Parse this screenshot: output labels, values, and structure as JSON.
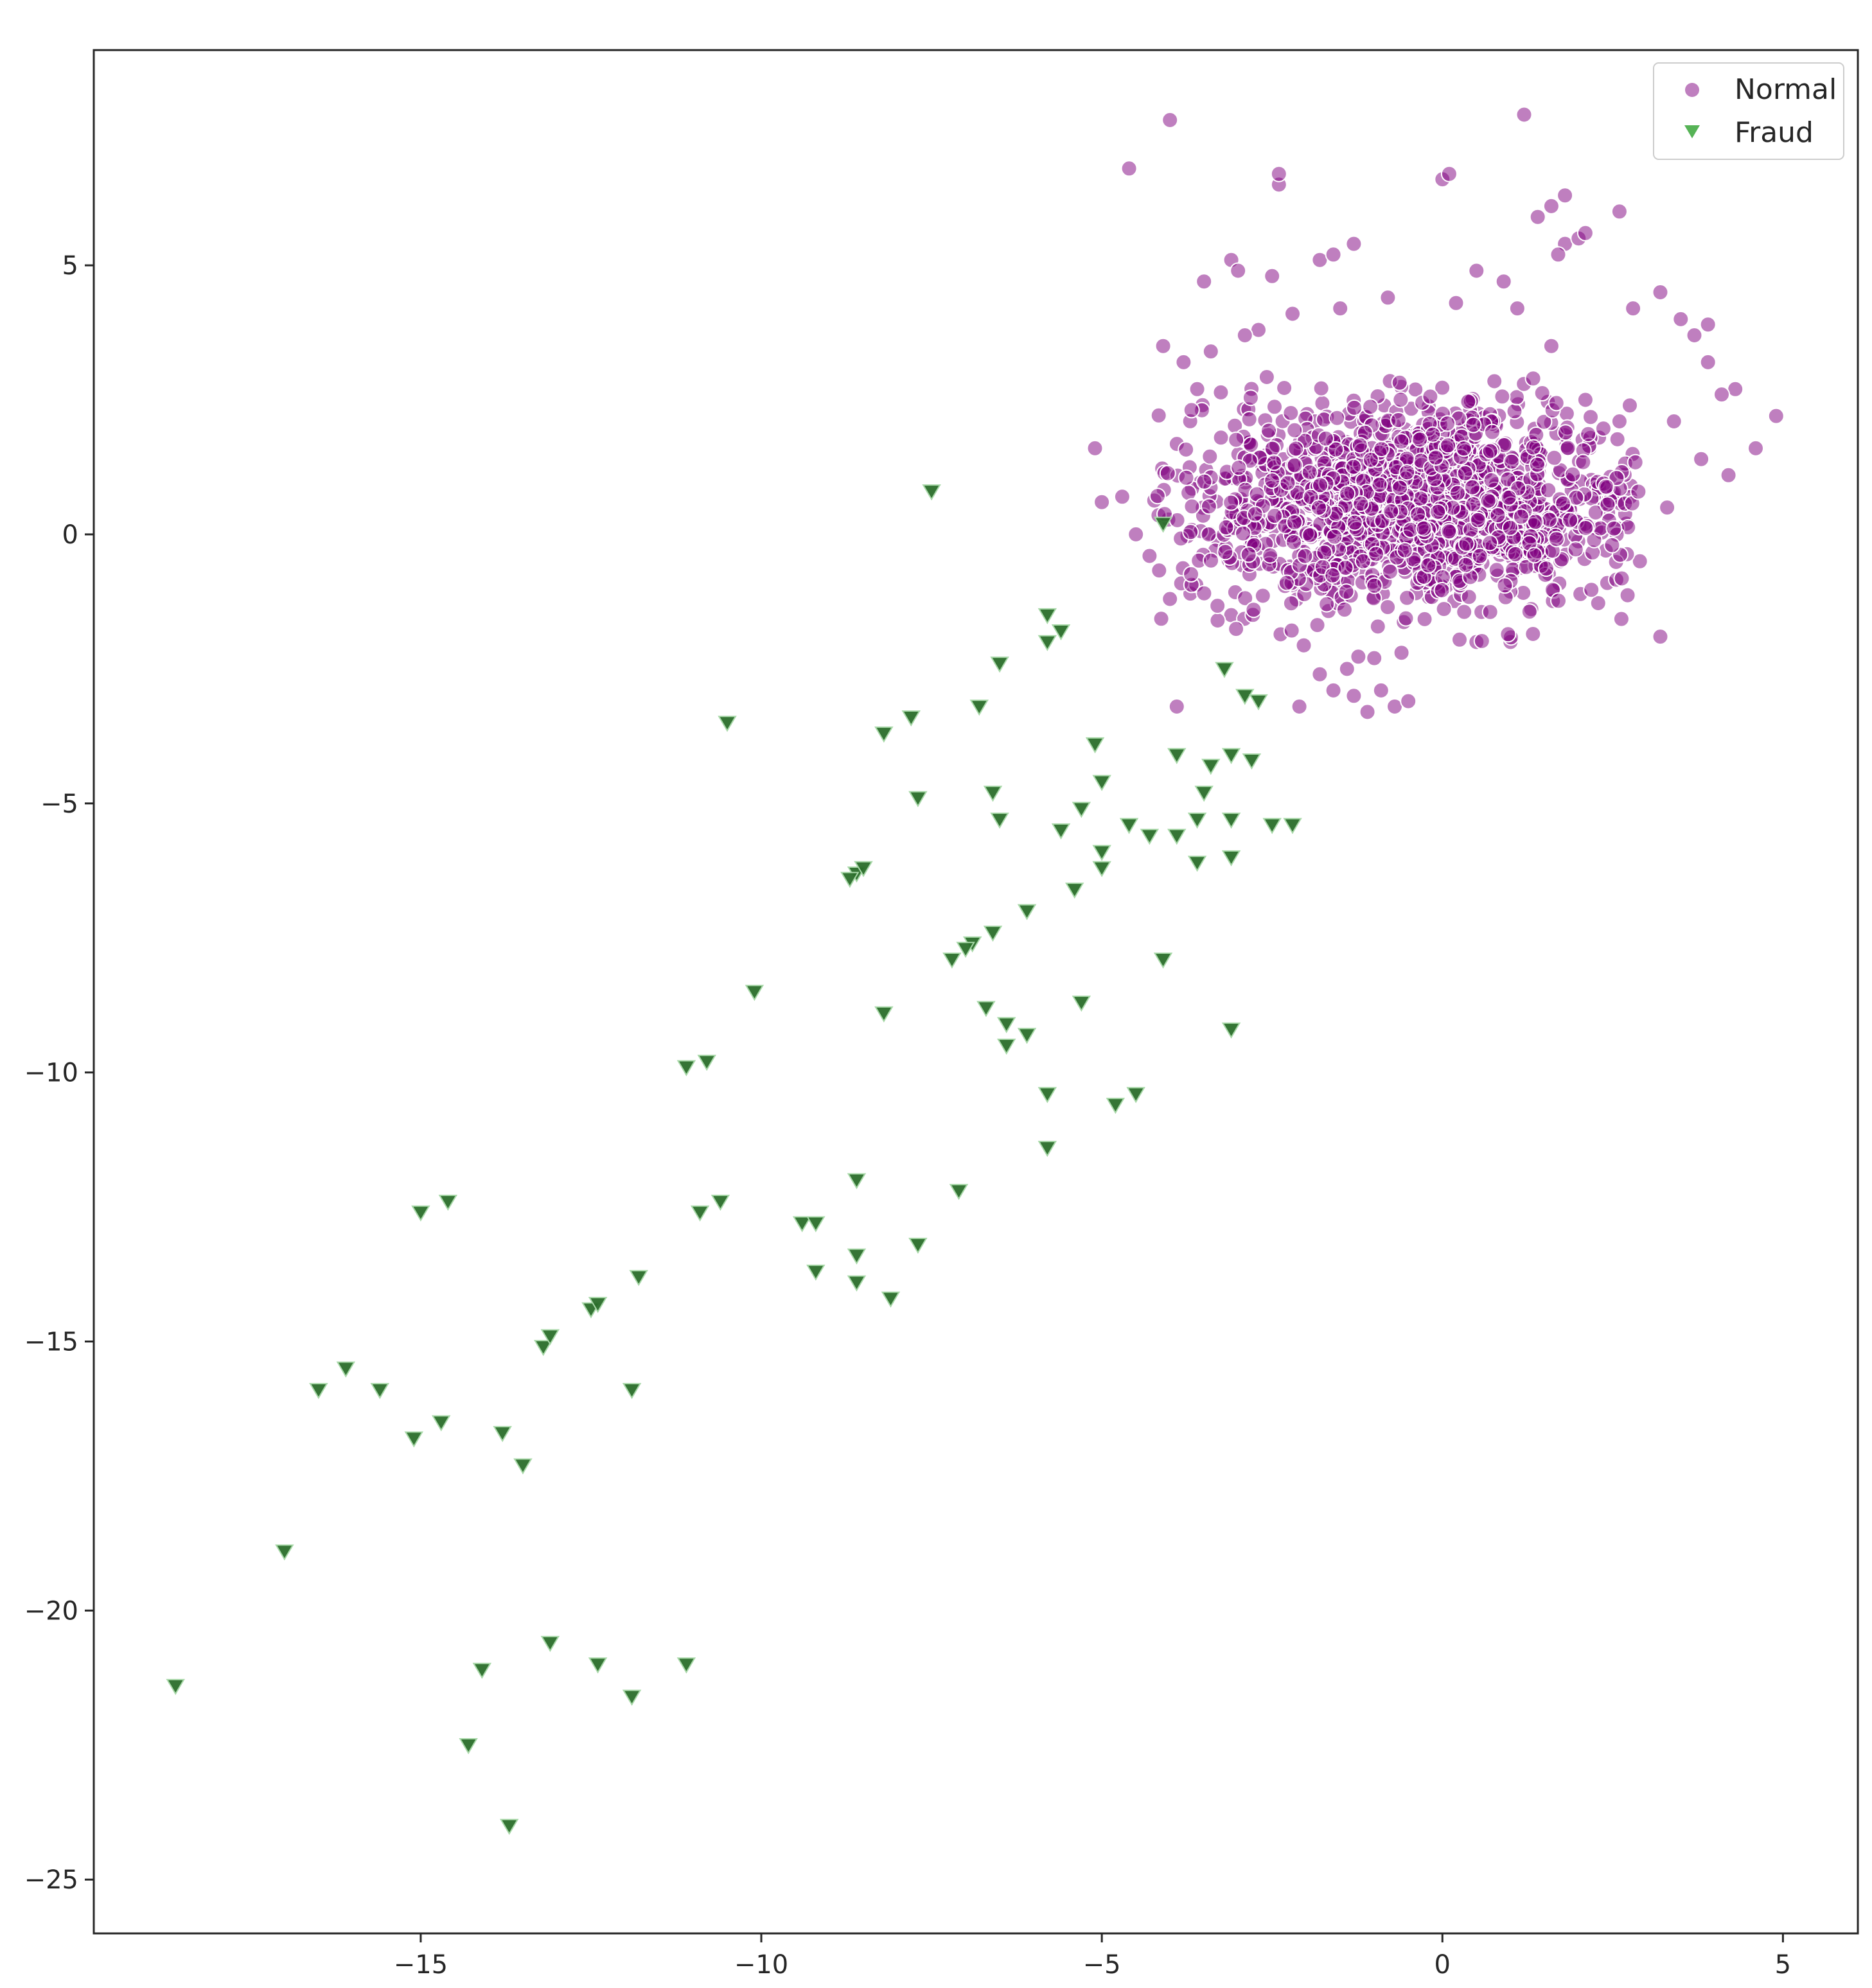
{
  "chart_data": {
    "type": "scatter",
    "title": "",
    "xlabel": "",
    "ylabel": "",
    "xlim": [
      -19.8,
      6.1
    ],
    "ylim": [
      -26.0,
      9.0
    ],
    "x_ticks": [
      -15,
      -10,
      -5,
      0,
      5
    ],
    "y_ticks": [
      5,
      0,
      -5,
      -10,
      -15,
      -20,
      -25
    ],
    "grid": false,
    "legend": {
      "position": "top-right"
    },
    "series": [
      {
        "name": "Normal",
        "marker": "circle",
        "color": "#800080",
        "alpha": 0.5,
        "cluster": {
          "center_x": -0.4,
          "center_y": 0.6,
          "spread_x": 1.7,
          "spread_y": 0.95,
          "x_range": [
            -4.3,
            2.9
          ],
          "y_range": [
            -2.3,
            3.0
          ],
          "count": 1500
        },
        "points": [
          [
            -4.6,
            6.8
          ],
          [
            -4.0,
            7.7
          ],
          [
            1.2,
            7.8
          ],
          [
            -2.4,
            6.5
          ],
          [
            -2.4,
            6.7
          ],
          [
            0.0,
            6.6
          ],
          [
            0.1,
            6.7
          ],
          [
            1.8,
            6.3
          ],
          [
            1.6,
            6.1
          ],
          [
            1.4,
            5.9
          ],
          [
            1.8,
            5.4
          ],
          [
            2.0,
            5.5
          ],
          [
            2.1,
            5.6
          ],
          [
            2.6,
            6.0
          ],
          [
            1.7,
            5.2
          ],
          [
            -1.3,
            5.4
          ],
          [
            -1.8,
            5.1
          ],
          [
            -1.6,
            5.2
          ],
          [
            -3.1,
            5.1
          ],
          [
            -3.0,
            4.9
          ],
          [
            -3.5,
            4.7
          ],
          [
            -2.5,
            4.8
          ],
          [
            0.5,
            4.9
          ],
          [
            0.9,
            4.7
          ],
          [
            3.2,
            4.5
          ],
          [
            2.8,
            4.2
          ],
          [
            3.5,
            4.0
          ],
          [
            3.7,
            3.7
          ],
          [
            3.9,
            3.9
          ],
          [
            4.3,
            2.7
          ],
          [
            4.1,
            2.6
          ],
          [
            4.9,
            2.2
          ],
          [
            4.6,
            1.6
          ],
          [
            4.2,
            1.1
          ],
          [
            3.8,
            1.4
          ],
          [
            3.3,
            0.5
          ],
          [
            3.2,
            -1.9
          ],
          [
            2.9,
            -0.5
          ],
          [
            3.4,
            2.1
          ],
          [
            3.9,
            3.2
          ],
          [
            -4.1,
            3.5
          ],
          [
            -3.8,
            3.2
          ],
          [
            -5.0,
            0.6
          ],
          [
            -5.1,
            1.6
          ],
          [
            -4.7,
            0.7
          ],
          [
            -4.5,
            0.0
          ],
          [
            -4.3,
            -0.4
          ],
          [
            -4.0,
            -1.2
          ],
          [
            -3.7,
            -1.1
          ],
          [
            -3.9,
            -3.2
          ],
          [
            -3.1,
            -1.5
          ],
          [
            -3.3,
            -1.6
          ],
          [
            -2.1,
            -3.2
          ],
          [
            -1.8,
            -2.6
          ],
          [
            -1.6,
            -2.9
          ],
          [
            -1.3,
            -3.0
          ],
          [
            -1.1,
            -3.3
          ],
          [
            -0.9,
            -2.9
          ],
          [
            -0.7,
            -3.2
          ],
          [
            -0.5,
            -3.1
          ],
          [
            -1.4,
            -2.5
          ],
          [
            -1.0,
            -2.3
          ],
          [
            -0.6,
            -2.2
          ],
          [
            1.0,
            -2.0
          ],
          [
            0.5,
            -2.0
          ],
          [
            2.4,
            -0.3
          ],
          [
            2.7,
            0.2
          ],
          [
            2.3,
            1.8
          ],
          [
            2.6,
            2.1
          ],
          [
            2.1,
            2.5
          ],
          [
            -2.7,
            3.8
          ],
          [
            -2.2,
            4.1
          ],
          [
            -1.5,
            4.2
          ],
          [
            -0.8,
            4.4
          ],
          [
            0.2,
            4.3
          ],
          [
            1.1,
            4.2
          ],
          [
            1.6,
            3.5
          ],
          [
            -3.6,
            2.7
          ],
          [
            -3.4,
            3.4
          ],
          [
            -2.9,
            3.7
          ]
        ]
      },
      {
        "name": "Fraud",
        "marker": "triangle-down",
        "color": "#2ca02c",
        "alpha": 0.8,
        "points": [
          [
            -7.5,
            0.8
          ],
          [
            -4.1,
            0.2
          ],
          [
            -5.8,
            -1.5
          ],
          [
            -5.6,
            -1.8
          ],
          [
            -5.8,
            -2.0
          ],
          [
            -6.5,
            -2.4
          ],
          [
            -3.2,
            -2.5
          ],
          [
            -2.9,
            -3.0
          ],
          [
            -2.7,
            -3.1
          ],
          [
            -10.5,
            -3.5
          ],
          [
            -8.2,
            -3.7
          ],
          [
            -7.8,
            -3.4
          ],
          [
            -6.8,
            -3.2
          ],
          [
            -5.1,
            -3.9
          ],
          [
            -3.9,
            -4.1
          ],
          [
            -3.1,
            -4.1
          ],
          [
            -2.8,
            -4.2
          ],
          [
            -3.4,
            -4.3
          ],
          [
            -3.5,
            -4.8
          ],
          [
            -7.7,
            -4.9
          ],
          [
            -6.6,
            -4.8
          ],
          [
            -5.0,
            -4.6
          ],
          [
            -6.5,
            -5.3
          ],
          [
            -5.3,
            -5.1
          ],
          [
            -3.6,
            -5.3
          ],
          [
            -3.1,
            -5.3
          ],
          [
            -2.5,
            -5.4
          ],
          [
            -2.2,
            -5.4
          ],
          [
            -4.6,
            -5.4
          ],
          [
            -4.3,
            -5.6
          ],
          [
            -3.9,
            -5.6
          ],
          [
            -5.6,
            -5.5
          ],
          [
            -5.0,
            -5.9
          ],
          [
            -5.0,
            -6.2
          ],
          [
            -3.6,
            -6.1
          ],
          [
            -3.1,
            -6.0
          ],
          [
            -8.6,
            -6.3
          ],
          [
            -8.5,
            -6.2
          ],
          [
            -8.7,
            -6.4
          ],
          [
            -5.4,
            -6.6
          ],
          [
            -6.1,
            -7.0
          ],
          [
            -6.6,
            -7.4
          ],
          [
            -6.9,
            -7.6
          ],
          [
            -7.0,
            -7.7
          ],
          [
            -7.2,
            -7.9
          ],
          [
            -4.1,
            -7.9
          ],
          [
            -10.1,
            -8.5
          ],
          [
            -8.2,
            -8.9
          ],
          [
            -6.7,
            -8.8
          ],
          [
            -6.4,
            -9.1
          ],
          [
            -6.1,
            -9.3
          ],
          [
            -6.4,
            -9.5
          ],
          [
            -5.3,
            -8.7
          ],
          [
            -3.1,
            -9.2
          ],
          [
            -11.1,
            -9.9
          ],
          [
            -10.8,
            -9.8
          ],
          [
            -5.8,
            -10.4
          ],
          [
            -4.5,
            -10.4
          ],
          [
            -4.8,
            -10.6
          ],
          [
            -5.8,
            -11.4
          ],
          [
            -8.6,
            -12.0
          ],
          [
            -7.1,
            -12.2
          ],
          [
            -15.0,
            -12.6
          ],
          [
            -14.6,
            -12.4
          ],
          [
            -10.9,
            -12.6
          ],
          [
            -10.6,
            -12.4
          ],
          [
            -9.4,
            -12.8
          ],
          [
            -9.2,
            -12.8
          ],
          [
            -8.6,
            -13.4
          ],
          [
            -7.7,
            -13.2
          ],
          [
            -9.2,
            -13.7
          ],
          [
            -8.6,
            -13.9
          ],
          [
            -8.1,
            -14.2
          ],
          [
            -11.8,
            -13.8
          ],
          [
            -12.5,
            -14.4
          ],
          [
            -12.4,
            -14.3
          ],
          [
            -13.2,
            -15.1
          ],
          [
            -13.1,
            -14.9
          ],
          [
            -16.5,
            -15.9
          ],
          [
            -16.1,
            -15.5
          ],
          [
            -15.6,
            -15.9
          ],
          [
            -11.9,
            -15.9
          ],
          [
            -15.1,
            -16.8
          ],
          [
            -14.7,
            -16.5
          ],
          [
            -13.8,
            -16.7
          ],
          [
            -13.5,
            -17.3
          ],
          [
            -17.0,
            -18.9
          ],
          [
            -18.6,
            -21.4
          ],
          [
            -13.1,
            -20.6
          ],
          [
            -14.1,
            -21.1
          ],
          [
            -12.4,
            -21.0
          ],
          [
            -11.9,
            -21.6
          ],
          [
            -11.1,
            -21.0
          ],
          [
            -14.3,
            -22.5
          ],
          [
            -13.7,
            -24.0
          ]
        ]
      }
    ]
  }
}
